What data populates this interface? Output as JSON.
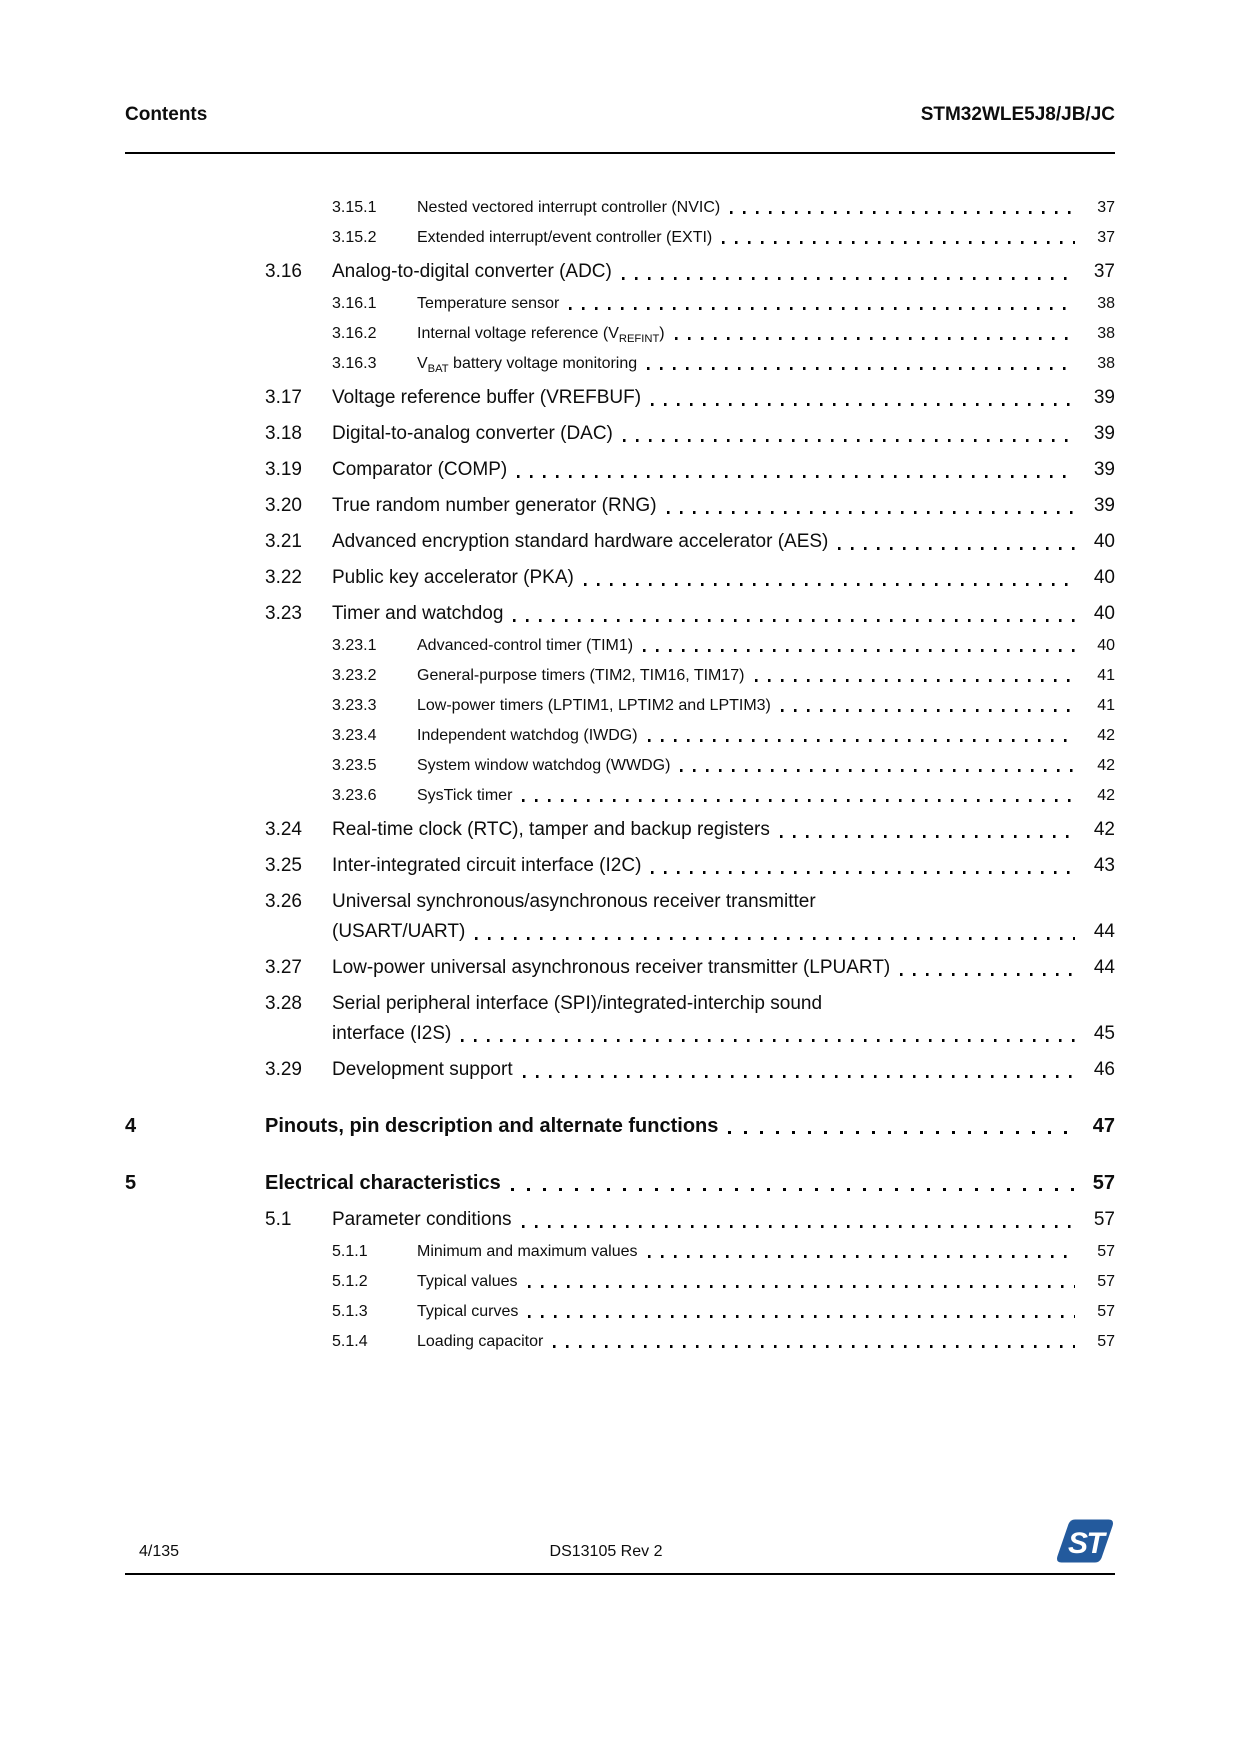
{
  "header": {
    "left": "Contents",
    "right": "STM32WLE5J8/JB/JC"
  },
  "footer": {
    "page_counter": "4/135",
    "revision": "DS13105 Rev 2",
    "logo_color": "#235a9d"
  },
  "toc": {
    "entries": [
      {
        "level": 3,
        "num": "3.15.1",
        "title": "Nested vectored interrupt controller (NVIC)",
        "page": "37"
      },
      {
        "level": 3,
        "num": "3.15.2",
        "title": "Extended interrupt/event controller (EXTI)",
        "page": "37"
      },
      {
        "level": 2,
        "num": "3.16",
        "title": "Analog-to-digital converter (ADC)",
        "page": "37"
      },
      {
        "level": 3,
        "num": "3.16.1",
        "title": "Temperature sensor",
        "page": "38"
      },
      {
        "level": 3,
        "num": "3.16.2",
        "parts": [
          {
            "text": "Internal voltage reference (V"
          },
          {
            "text": "REFINT",
            "sub": true
          },
          {
            "text": ")"
          }
        ],
        "page": "38"
      },
      {
        "level": 3,
        "num": "3.16.3",
        "parts": [
          {
            "text": "V"
          },
          {
            "text": "BAT",
            "sub": true
          },
          {
            "text": " battery voltage monitoring"
          }
        ],
        "page": "38"
      },
      {
        "level": 2,
        "num": "3.17",
        "title": "Voltage reference buffer (VREFBUF)",
        "page": "39"
      },
      {
        "level": 2,
        "num": "3.18",
        "title": "Digital-to-analog converter (DAC)",
        "page": "39"
      },
      {
        "level": 2,
        "num": "3.19",
        "title": "Comparator (COMP)",
        "page": "39"
      },
      {
        "level": 2,
        "num": "3.20",
        "title": "True random number generator (RNG)",
        "page": "39"
      },
      {
        "level": 2,
        "num": "3.21",
        "title": "Advanced encryption standard hardware accelerator (AES)",
        "page": "40"
      },
      {
        "level": 2,
        "num": "3.22",
        "title": "Public key accelerator (PKA)",
        "page": "40"
      },
      {
        "level": 2,
        "num": "3.23",
        "title": "Timer and watchdog",
        "page": "40"
      },
      {
        "level": 3,
        "num": "3.23.1",
        "title": "Advanced-control timer (TIM1)",
        "page": "40"
      },
      {
        "level": 3,
        "num": "3.23.2",
        "title": "General-purpose timers (TIM2, TIM16, TIM17)",
        "page": "41"
      },
      {
        "level": 3,
        "num": "3.23.3",
        "title": "Low-power timers (LPTIM1, LPTIM2 and LPTIM3)",
        "page": "41"
      },
      {
        "level": 3,
        "num": "3.23.4",
        "title": "Independent watchdog (IWDG)",
        "page": "42"
      },
      {
        "level": 3,
        "num": "3.23.5",
        "title": "System window watchdog (WWDG)",
        "page": "42"
      },
      {
        "level": 3,
        "num": "3.23.6",
        "title": "SysTick timer",
        "page": "42"
      },
      {
        "level": 2,
        "num": "3.24",
        "title": "Real-time clock (RTC), tamper and backup registers",
        "page": "42"
      },
      {
        "level": 2,
        "num": "3.25",
        "title": "Inter-integrated circuit interface (I2C)",
        "page": "43"
      },
      {
        "level": 2,
        "num": "3.26",
        "title": "Universal synchronous/asynchronous receiver transmitter",
        "title2": "(USART/UART)",
        "page": "44"
      },
      {
        "level": 2,
        "num": "3.27",
        "title": "Low-power universal asynchronous receiver transmitter (LPUART)",
        "page": "44"
      },
      {
        "level": 2,
        "num": "3.28",
        "title": "Serial peripheral interface (SPI)/integrated-interchip sound",
        "title2": "interface (I2S)",
        "page": "45"
      },
      {
        "level": 2,
        "num": "3.29",
        "title": "Development support",
        "page": "46"
      },
      {
        "level": 1,
        "num": "4",
        "title": "Pinouts, pin description and alternate functions",
        "page": "47"
      },
      {
        "level": 1,
        "num": "5",
        "title": "Electrical characteristics",
        "page": "57"
      },
      {
        "level": 2,
        "num": "5.1",
        "title": "Parameter conditions",
        "page": "57"
      },
      {
        "level": 3,
        "num": "5.1.1",
        "title": "Minimum and maximum values",
        "page": "57"
      },
      {
        "level": 3,
        "num": "5.1.2",
        "title": "Typical values",
        "page": "57"
      },
      {
        "level": 3,
        "num": "5.1.3",
        "title": "Typical curves",
        "page": "57"
      },
      {
        "level": 3,
        "num": "5.1.4",
        "title": "Loading capacitor",
        "page": "57"
      }
    ]
  }
}
